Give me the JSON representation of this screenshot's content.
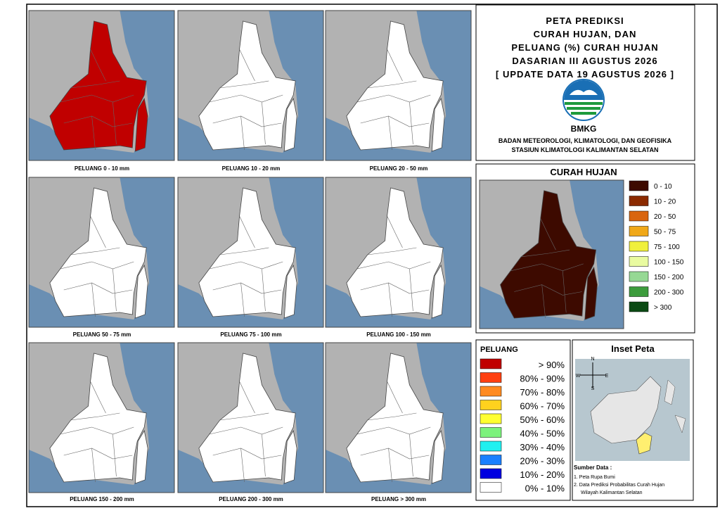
{
  "header": {
    "title_lines": [
      "PETA PREDIKSI",
      "CURAH HUJAN, DAN",
      "PELUANG (%) CURAH HUJAN",
      "DASARIAN III AGUSTUS 2026",
      "[ UPDATE DATA 19 AGUSTUS 2026 ]"
    ],
    "logo_text": "BMKG",
    "agency_lines": [
      "BADAN METEOROLOGI, KLIMATOLOGI, DAN GEOFISIKA",
      "STASIUN KLIMATOLOGI KALIMANTAN SELATAN"
    ]
  },
  "panels": [
    {
      "label": "PELUANG 0 - 10 mm",
      "fill": "#c00000"
    },
    {
      "label": "PELUANG 10 - 20 mm",
      "fill": "#ffffff"
    },
    {
      "label": "PELUANG 20 - 50 mm",
      "fill": "#ffffff"
    },
    {
      "label": "PELUANG 50 - 75 mm",
      "fill": "#ffffff"
    },
    {
      "label": "PELUANG 75 - 100 mm",
      "fill": "#ffffff"
    },
    {
      "label": "PELUANG 100 - 150 mm",
      "fill": "#ffffff"
    },
    {
      "label": "PELUANG 150 - 200 mm",
      "fill": "#ffffff"
    },
    {
      "label": "PELUANG 200 - 300 mm",
      "fill": "#ffffff"
    },
    {
      "label": "PELUANG > 300 mm",
      "fill": "#ffffff"
    }
  ],
  "curah_hujan": {
    "title": "CURAH HUJAN",
    "fill": "#3d0a00",
    "legend": [
      {
        "label": "0 - 10",
        "color": "#3d0a00"
      },
      {
        "label": "10 - 20",
        "color": "#8b2a00"
      },
      {
        "label": "20 - 50",
        "color": "#d9650f"
      },
      {
        "label": "50 - 75",
        "color": "#f0a818"
      },
      {
        "label": "75 - 100",
        "color": "#f0f03c"
      },
      {
        "label": "100 - 150",
        "color": "#e9fba0"
      },
      {
        "label": "150 - 200",
        "color": "#96d894"
      },
      {
        "label": "200 - 300",
        "color": "#3c9c3c"
      },
      {
        "label": "> 300",
        "color": "#0b4a14"
      }
    ]
  },
  "peluang": {
    "title": "PELUANG",
    "legend": [
      {
        "label": "> 90%",
        "color": "#c00000"
      },
      {
        "label": "80% - 90%",
        "color": "#ff4010"
      },
      {
        "label": "70% - 80%",
        "color": "#ff8a20"
      },
      {
        "label": "60% - 70%",
        "color": "#ffd21e"
      },
      {
        "label": "50% - 60%",
        "color": "#ffff30"
      },
      {
        "label": "40% - 50%",
        "color": "#7cf27c"
      },
      {
        "label": "30% - 40%",
        "color": "#20f0f0"
      },
      {
        "label": "20% - 30%",
        "color": "#1a80ff"
      },
      {
        "label": "10% - 20%",
        "color": "#0000e0"
      },
      {
        "label": "0% - 10%",
        "color": "#ffffff"
      }
    ]
  },
  "inset": {
    "title": "Inset Peta",
    "compass": [
      "N",
      "E",
      "S",
      "W"
    ],
    "source_title": "Sumber Data :",
    "sources": [
      "1. Peta Rupa Bumi",
      "2. Data Prediksi Probabilitas Curah Hujan",
      "Wilayah Kalimantan Selatan"
    ]
  }
}
